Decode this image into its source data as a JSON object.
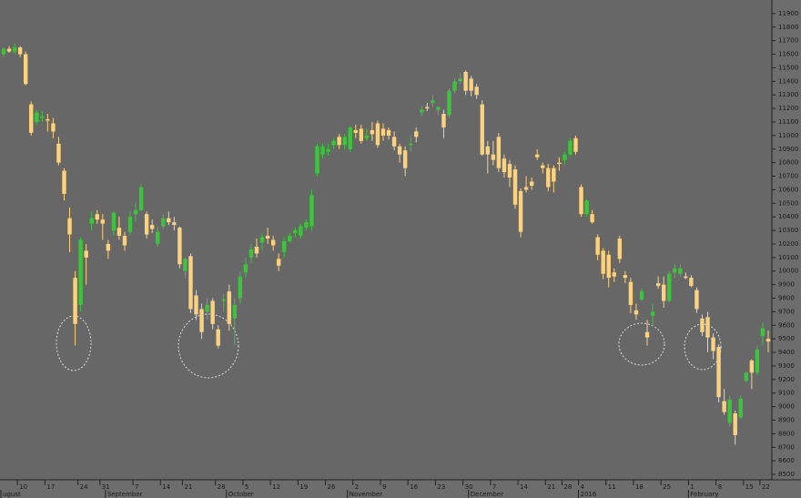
{
  "chart_data": {
    "type": "candlestick",
    "up_color": "#3cc43c",
    "down_color": "#fdd27e",
    "ylim": [
      8460,
      12000
    ],
    "yticks": [
      8500,
      8600,
      8700,
      8800,
      8900,
      9000,
      9100,
      9200,
      9300,
      9400,
      9500,
      9600,
      9700,
      9800,
      9900,
      10000,
      10100,
      10200,
      10300,
      10400,
      10500,
      10600,
      10700,
      10800,
      10900,
      11000,
      11100,
      11200,
      11300,
      11400,
      11500,
      11600,
      11700,
      11800,
      11900
    ],
    "categories": [
      null,
      null,
      null,
      "10",
      null,
      null,
      null,
      null,
      "17",
      null,
      null,
      null,
      null,
      null,
      "24",
      null,
      null,
      null,
      "31",
      null,
      null,
      null,
      null,
      null,
      "7",
      null,
      null,
      null,
      null,
      "14",
      null,
      null,
      null,
      "21",
      null,
      null,
      null,
      null,
      null,
      "28",
      null,
      null,
      null,
      null,
      "5",
      null,
      null,
      null,
      null,
      "12",
      null,
      null,
      null,
      null,
      "19",
      null,
      null,
      null,
      null,
      "26",
      null,
      null,
      null,
      null,
      "2",
      null,
      null,
      null,
      null,
      "9",
      null,
      null,
      null,
      null,
      "16",
      null,
      null,
      null,
      null,
      "23",
      null,
      null,
      null,
      null,
      "30",
      null,
      null,
      null,
      null,
      "7",
      null,
      null,
      null,
      null,
      "14",
      null,
      null,
      null,
      null,
      "21",
      null,
      null,
      "28",
      null,
      null,
      "4",
      null,
      null,
      null,
      null,
      "11",
      null,
      null,
      null,
      null,
      "18",
      null,
      null,
      null,
      null,
      "25",
      null,
      null,
      null,
      null,
      "1",
      null,
      null,
      null,
      null,
      "8",
      null,
      null,
      null,
      null,
      "15",
      null,
      null,
      "22",
      null
    ],
    "months": [
      "ugust",
      null,
      null,
      null,
      null,
      null,
      null,
      null,
      null,
      null,
      null,
      null,
      null,
      null,
      null,
      null,
      null,
      null,
      null,
      "September",
      null,
      null,
      null,
      null,
      null,
      null,
      null,
      null,
      null,
      null,
      null,
      null,
      null,
      null,
      null,
      null,
      null,
      null,
      null,
      null,
      null,
      "October",
      null,
      null,
      null,
      null,
      null,
      null,
      null,
      null,
      null,
      null,
      null,
      null,
      null,
      null,
      null,
      null,
      null,
      null,
      null,
      null,
      null,
      "November",
      null,
      null,
      null,
      null,
      null,
      null,
      null,
      null,
      null,
      null,
      null,
      null,
      null,
      null,
      null,
      null,
      null,
      null,
      null,
      null,
      null,
      "December",
      null,
      null,
      null,
      null,
      null,
      null,
      null,
      null,
      null,
      null,
      null,
      null,
      null,
      null,
      null,
      null,
      null,
      null,
      null,
      "2016",
      null,
      null,
      null,
      null,
      null,
      null,
      null,
      null,
      null,
      null,
      null,
      null,
      null,
      null,
      null,
      null,
      null,
      null,
      null,
      "February",
      null,
      null,
      null,
      null,
      null,
      null,
      null,
      null,
      null,
      null,
      null,
      null,
      null,
      null
    ],
    "candles": [
      [
        11600,
        11650,
        11580,
        11640
      ],
      [
        11640,
        11660,
        11610,
        11620
      ],
      [
        11620,
        11680,
        11600,
        11650
      ],
      [
        11650,
        11660,
        11580,
        11600
      ],
      [
        11600,
        11620,
        11370,
        11380
      ],
      [
        11230,
        11250,
        11000,
        11020
      ],
      [
        11100,
        11190,
        11080,
        11170
      ],
      [
        11130,
        11180,
        11100,
        11140
      ],
      [
        11120,
        11160,
        11030,
        11110
      ],
      [
        11090,
        11130,
        10980,
        11030
      ],
      [
        10940,
        10990,
        10780,
        10800
      ],
      [
        10740,
        10760,
        10520,
        10570
      ],
      [
        10390,
        10470,
        10140,
        10270
      ],
      [
        9950,
        10000,
        9450,
        9610
      ],
      [
        9750,
        10250,
        9700,
        10230
      ],
      [
        10150,
        10200,
        9900,
        10100
      ],
      [
        10350,
        10440,
        10300,
        10390
      ],
      [
        10420,
        10450,
        10350,
        10380
      ],
      [
        10380,
        10420,
        10230,
        10350
      ],
      [
        10200,
        10230,
        10090,
        10150
      ],
      [
        10300,
        10440,
        10260,
        10430
      ],
      [
        10320,
        10400,
        10230,
        10260
      ],
      [
        10260,
        10290,
        10150,
        10190
      ],
      [
        10290,
        10440,
        10270,
        10400
      ],
      [
        10420,
        10500,
        10360,
        10450
      ],
      [
        10450,
        10640,
        10440,
        10620
      ],
      [
        10420,
        10440,
        10240,
        10270
      ],
      [
        10340,
        10380,
        10280,
        10310
      ],
      [
        10200,
        10330,
        10180,
        10290
      ],
      [
        10330,
        10420,
        10310,
        10390
      ],
      [
        10390,
        10440,
        10340,
        10360
      ],
      [
        10360,
        10400,
        10300,
        10340
      ],
      [
        10320,
        10330,
        10020,
        10050
      ],
      [
        10000,
        10100,
        9950,
        10090
      ],
      [
        10110,
        10130,
        9690,
        9720
      ],
      [
        9820,
        9860,
        9640,
        9680
      ],
      [
        9720,
        9760,
        9500,
        9550
      ],
      [
        9700,
        9800,
        9640,
        9750
      ],
      [
        9780,
        9800,
        9570,
        9610
      ],
      [
        9570,
        9600,
        9430,
        9450
      ],
      [
        9780,
        9830,
        9700,
        9790
      ],
      [
        9850,
        9900,
        9560,
        9610
      ],
      [
        9650,
        9800,
        9450,
        9750
      ],
      [
        9800,
        10000,
        9760,
        9960
      ],
      [
        9990,
        10100,
        9950,
        10050
      ],
      [
        10100,
        10200,
        10060,
        10160
      ],
      [
        10180,
        10240,
        10100,
        10130
      ],
      [
        10210,
        10280,
        10150,
        10250
      ],
      [
        10260,
        10320,
        10200,
        10240
      ],
      [
        10230,
        10260,
        10150,
        10190
      ],
      [
        10090,
        10130,
        10000,
        10040
      ],
      [
        10140,
        10250,
        10100,
        10220
      ],
      [
        10220,
        10280,
        10210,
        10260
      ],
      [
        10280,
        10320,
        10250,
        10300
      ],
      [
        10260,
        10350,
        10240,
        10330
      ],
      [
        10320,
        10380,
        10300,
        10360
      ],
      [
        10330,
        10600,
        10300,
        10560
      ],
      [
        10720,
        10940,
        10700,
        10920
      ],
      [
        10860,
        10940,
        10830,
        10920
      ],
      [
        10880,
        10940,
        10850,
        10900
      ],
      [
        10930,
        10980,
        10900,
        10960
      ],
      [
        10990,
        11010,
        10900,
        10930
      ],
      [
        10930,
        11010,
        10900,
        10990
      ],
      [
        10900,
        11070,
        10880,
        11060
      ],
      [
        11040,
        11080,
        10980,
        11020
      ],
      [
        11050,
        11080,
        10940,
        10960
      ],
      [
        10980,
        11050,
        10960,
        11000
      ],
      [
        11040,
        11100,
        10960,
        11010
      ],
      [
        11090,
        11110,
        10910,
        10930
      ],
      [
        11050,
        11090,
        10960,
        11000
      ],
      [
        11040,
        11060,
        10970,
        11000
      ],
      [
        10990,
        11030,
        10890,
        10920
      ],
      [
        10920,
        10940,
        10800,
        10860
      ],
      [
        10890,
        10920,
        10700,
        10760
      ],
      [
        10930,
        11000,
        10880,
        10940
      ],
      [
        11030,
        11060,
        10950,
        10990
      ],
      [
        11170,
        11220,
        11140,
        11190
      ],
      [
        11210,
        11240,
        11180,
        11200
      ],
      [
        11240,
        11300,
        11210,
        11260
      ],
      [
        11190,
        11220,
        11150,
        11210
      ],
      [
        11160,
        11190,
        10980,
        11060
      ],
      [
        11150,
        11350,
        11130,
        11330
      ],
      [
        11330,
        11420,
        11310,
        11400
      ],
      [
        11400,
        11460,
        11380,
        11420
      ],
      [
        11470,
        11480,
        11300,
        11330
      ],
      [
        11420,
        11440,
        11290,
        11330
      ],
      [
        11360,
        11380,
        11270,
        11300
      ],
      [
        11230,
        11260,
        10850,
        10860
      ],
      [
        10920,
        10960,
        10720,
        10860
      ],
      [
        10860,
        10960,
        10780,
        10820
      ],
      [
        10990,
        11020,
        10730,
        10760
      ],
      [
        10830,
        10860,
        10690,
        10730
      ],
      [
        10790,
        10820,
        10620,
        10690
      ],
      [
        10750,
        10780,
        10460,
        10490
      ],
      [
        10590,
        10610,
        10250,
        10290
      ],
      [
        10620,
        10700,
        10580,
        10600
      ],
      [
        10660,
        10690,
        10600,
        10630
      ],
      [
        10860,
        10900,
        10820,
        10840
      ],
      [
        10780,
        10800,
        10720,
        10760
      ],
      [
        10760,
        10790,
        10590,
        10620
      ],
      [
        10760,
        10780,
        10580,
        10660
      ],
      [
        10800,
        10840,
        10740,
        10790
      ],
      [
        10820,
        10880,
        10790,
        10860
      ],
      [
        10860,
        10980,
        10850,
        10960
      ],
      [
        10980,
        11000,
        10860,
        10880
      ],
      [
        10620,
        10640,
        10400,
        10420
      ],
      [
        10420,
        10530,
        10400,
        10520
      ],
      [
        10420,
        10450,
        10350,
        10360
      ],
      [
        10250,
        10270,
        10080,
        10120
      ],
      [
        10150,
        10170,
        9940,
        9980
      ],
      [
        10120,
        10150,
        9880,
        9950
      ],
      [
        9990,
        10020,
        9920,
        9960
      ],
      [
        10240,
        10260,
        10060,
        10090
      ],
      [
        9970,
        10000,
        9910,
        9950
      ],
      [
        9920,
        9950,
        9690,
        9750
      ],
      [
        9710,
        9760,
        9640,
        9680
      ],
      [
        9790,
        9870,
        9780,
        9850
      ],
      [
        9550,
        9640,
        9450,
        9510
      ],
      [
        9670,
        9760,
        9590,
        9700
      ],
      [
        9910,
        9960,
        9870,
        9890
      ],
      [
        9900,
        9960,
        9730,
        9780
      ],
      [
        9780,
        10000,
        9770,
        9980
      ],
      [
        9990,
        10050,
        9950,
        10020
      ],
      [
        9980,
        10050,
        9960,
        10020
      ],
      [
        9960,
        9990,
        9940,
        9950
      ],
      [
        9950,
        9970,
        9880,
        9890
      ],
      [
        9860,
        9880,
        9690,
        9720
      ],
      [
        9650,
        9680,
        9520,
        9550
      ],
      [
        9660,
        9700,
        9400,
        9510
      ],
      [
        9510,
        9540,
        9350,
        9410
      ],
      [
        9440,
        9460,
        9030,
        9070
      ],
      [
        9040,
        9130,
        8940,
        8960
      ],
      [
        8880,
        9080,
        8850,
        9050
      ],
      [
        8950,
        8970,
        8720,
        8790
      ],
      [
        8920,
        9080,
        8910,
        9060
      ],
      [
        9190,
        9260,
        9180,
        9250
      ],
      [
        9340,
        9350,
        9130,
        9250
      ],
      [
        9250,
        9450,
        9230,
        9420
      ],
      [
        9520,
        9620,
        9450,
        9580
      ],
      [
        9500,
        9560,
        9400,
        9480
      ]
    ]
  }
}
